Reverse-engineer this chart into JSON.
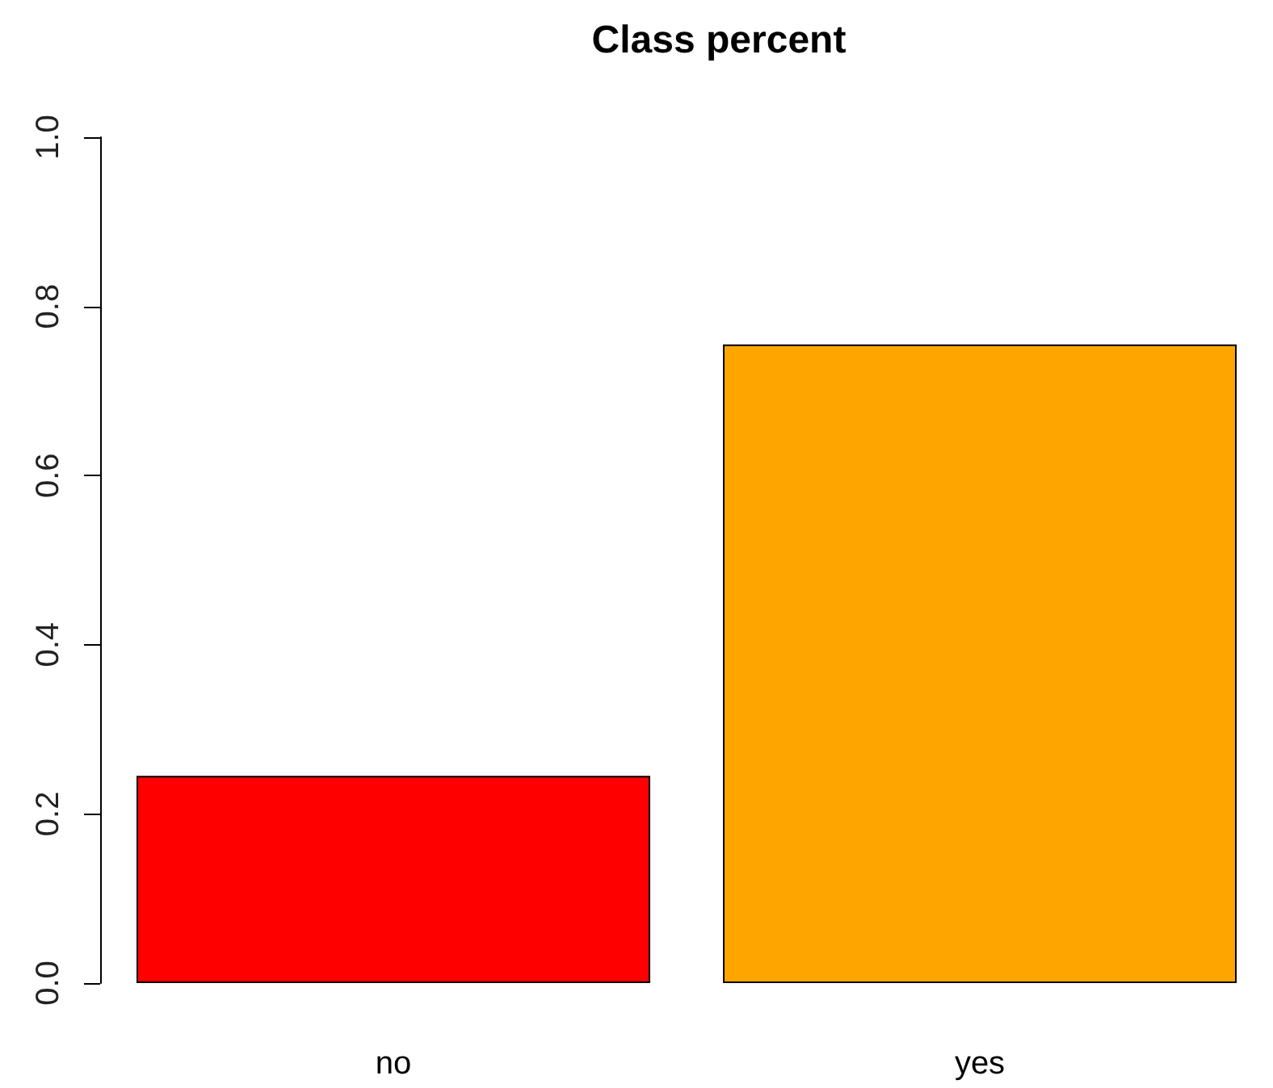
{
  "chart_data": {
    "type": "bar",
    "title": "Class percent",
    "categories": [
      "no",
      "yes"
    ],
    "values": [
      0.245,
      0.755
    ],
    "colors": [
      "#ff0000",
      "#ffa500"
    ],
    "ylim": [
      0,
      1
    ],
    "yticks": [
      {
        "value": 0,
        "label": "0.0"
      },
      {
        "value": 0.2,
        "label": "0.2"
      },
      {
        "value": 0.4,
        "label": "0.4"
      },
      {
        "value": 0.6,
        "label": "0.6"
      },
      {
        "value": 0.8,
        "label": "0.8"
      },
      {
        "value": 1,
        "label": "1.0"
      }
    ],
    "grid": false
  }
}
